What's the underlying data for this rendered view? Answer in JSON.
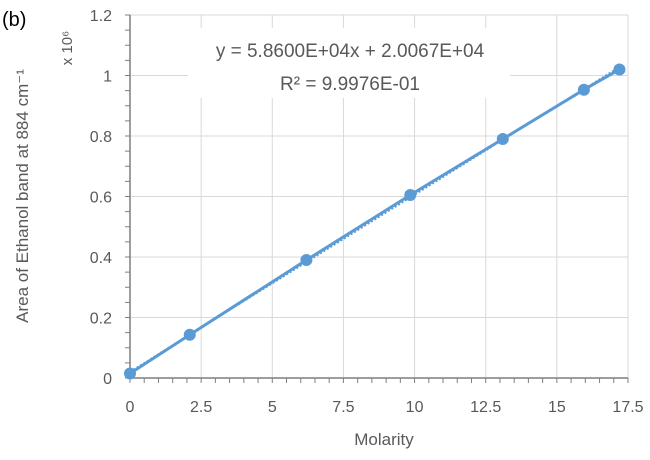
{
  "panel_label": "(b)",
  "chart_data": {
    "type": "scatter",
    "title": "",
    "xlabel": "Molarity",
    "ylabel": "Area of Ethanol  band at 884 cm⁻¹",
    "y_multiplier": "x 10⁶",
    "xlim": [
      0,
      17.5
    ],
    "ylim": [
      0,
      1.2
    ],
    "xticks": [
      "0",
      "2.5",
      "5",
      "7.5",
      "10",
      "12.5",
      "15",
      "17.5"
    ],
    "yticks": [
      "0",
      "0.2",
      "0.4",
      "0.6",
      "0.8",
      "1",
      "1.2"
    ],
    "grid": true,
    "points": {
      "x": [
        0,
        2.1,
        6.2,
        9.85,
        13.1,
        15.95,
        17.2
      ],
      "y": [
        0.015,
        0.143,
        0.39,
        0.605,
        0.79,
        0.953,
        1.02
      ]
    },
    "trendline": {
      "slope": 0.0586,
      "intercept": 0.020067,
      "equation": "y = 5.8600E+04x + 2.0067E+04",
      "r2_label": "R² = 9.9976E-01"
    },
    "color": "#5b9bd5"
  }
}
